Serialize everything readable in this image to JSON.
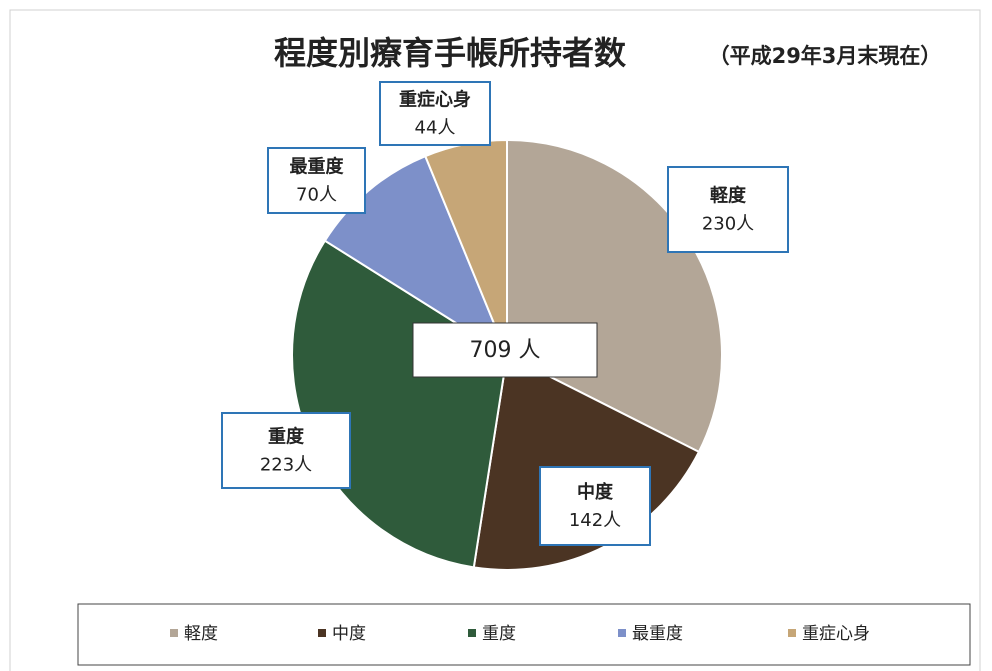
{
  "chart_data": {
    "type": "pie",
    "title": "程度別療育手帳所持者数",
    "subtitle": "（平成29年3月末現在）",
    "center_label": "709 人",
    "categories": [
      "軽度",
      "中度",
      "重度",
      "最重度",
      "重症心身"
    ],
    "values": [
      230,
      142,
      223,
      70,
      44
    ],
    "value_labels": [
      "230人",
      "142人",
      "223人",
      "70人",
      "44人"
    ],
    "colors": [
      "#b3a697",
      "#4b3423",
      "#2f5b3b",
      "#7d90c9",
      "#c6a677"
    ],
    "legend": "bottom"
  }
}
